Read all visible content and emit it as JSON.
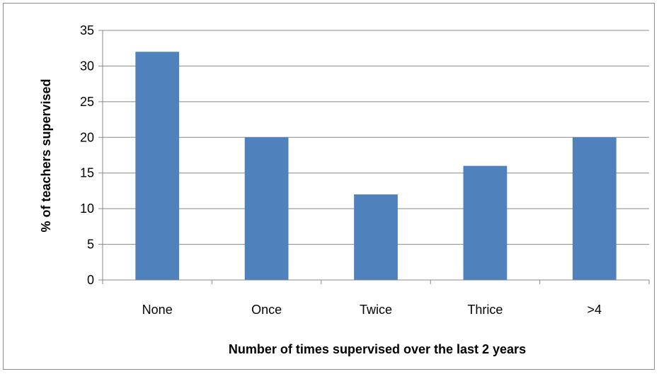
{
  "chart_data": {
    "type": "bar",
    "title": "",
    "xlabel": "Number of times supervised over the last 2 years",
    "ylabel": "% of teachers supervised",
    "categories": [
      "None",
      "Once",
      "Twice",
      "Thrice",
      ">4"
    ],
    "values": [
      32,
      20,
      12,
      16,
      20
    ],
    "ylim": [
      0,
      35
    ],
    "yticks": [
      0,
      5,
      10,
      15,
      20,
      25,
      30,
      35
    ],
    "grid": true,
    "legend": "none",
    "colors": {
      "bar": "#4f81bd",
      "grid": "#888888",
      "axis": "#888888",
      "border": "#8c8c8c"
    }
  }
}
